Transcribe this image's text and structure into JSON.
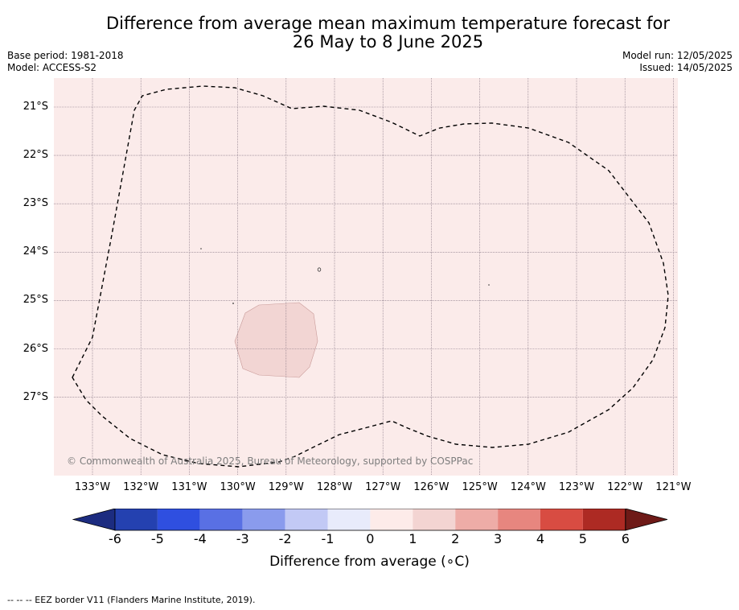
{
  "title_line1": "Difference from average mean maximum temperature forecast for",
  "title_line2": "26 May to 8 June 2025",
  "base_period": "Base period: 1981-2018",
  "model": "Model: ACCESS-S2",
  "model_run": "Model run: 12/05/2025",
  "issued": "Issued: 14/05/2025",
  "lat_labels": [
    "21°S",
    "22°S",
    "23°S",
    "24°S",
    "25°S",
    "26°S",
    "27°S"
  ],
  "lon_labels": [
    "133°W",
    "132°W",
    "131°W",
    "130°W",
    "129°W",
    "128°W",
    "127°W",
    "126°W",
    "125°W",
    "124°W",
    "123°W",
    "122°W",
    "121°W"
  ],
  "copyright": "© Commonwealth of Australia 2025, Bureau of Meteorology, supported by COSPPac",
  "colorbar": {
    "ticks": [
      "-6",
      "-5",
      "-4",
      "-3",
      "-2",
      "-1",
      "0",
      "1",
      "2",
      "3",
      "4",
      "5",
      "6"
    ],
    "colors": [
      "#1c2c80",
      "#2441b0",
      "#2f4fe0",
      "#5970e4",
      "#8a9bed",
      "#c2c9f5",
      "#e8ebfb",
      "#fdebe9",
      "#f3d4d2",
      "#eeaca7",
      "#e7867f",
      "#d84c42",
      "#ad2a23",
      "#6e1a17"
    ],
    "label": "Difference from average (∘C)"
  },
  "map_colors": {
    "background": "#fbebea",
    "anomaly_patch": "#f2d5d3"
  },
  "footer": "--  --  -- EEZ border V11 (Flanders Marine Institute, 2019)."
}
